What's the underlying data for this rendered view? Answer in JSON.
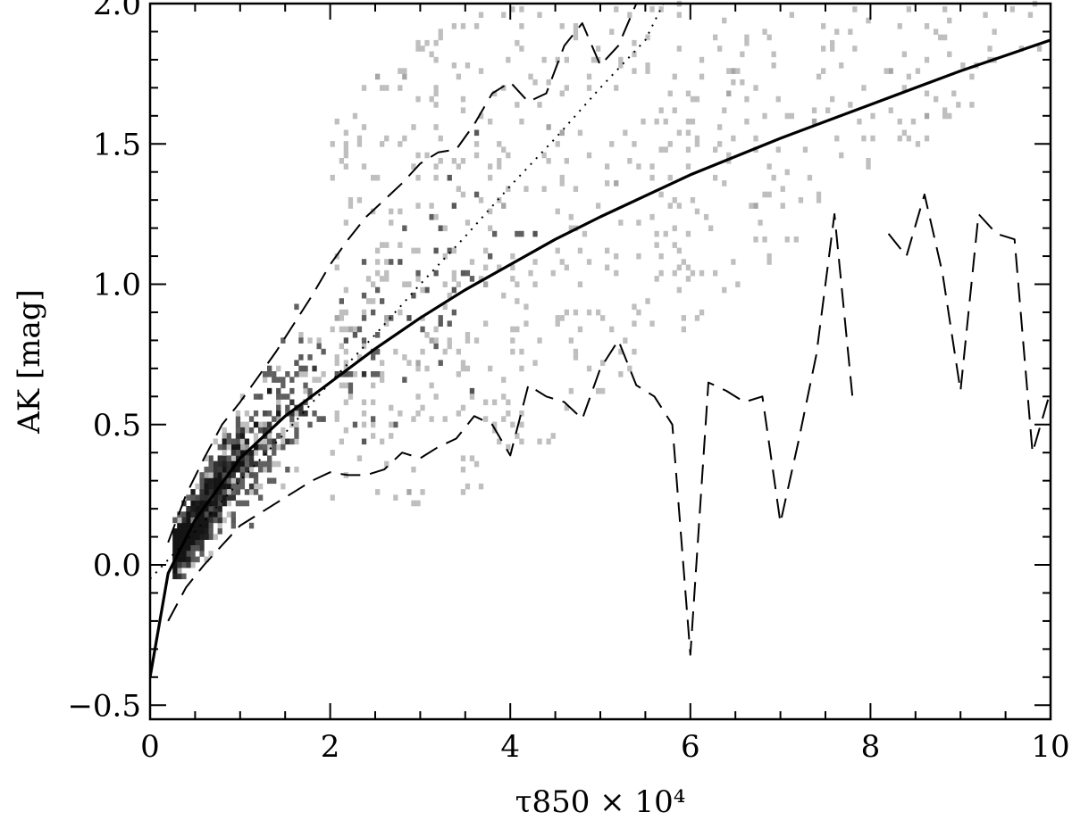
{
  "chart_data": {
    "type": "scatter",
    "title": "",
    "xlabel": "τ850 × 10⁴",
    "ylabel": "AK [mag]",
    "xlim": [
      0,
      10
    ],
    "ylim": [
      -0.55,
      2.0
    ],
    "grid": false,
    "x_ticks": [
      0,
      2,
      4,
      6,
      8,
      10
    ],
    "x_tick_labels": [
      "0",
      "2",
      "4",
      "6",
      "8",
      "10"
    ],
    "y_ticks": [
      -0.5,
      0.0,
      0.5,
      1.0,
      1.5,
      2.0
    ],
    "y_tick_labels": [
      "−0.5",
      "0.0",
      "0.5",
      "1.0",
      "1.5",
      "2.0"
    ],
    "density_ridge": [
      [
        0.3,
        0.05
      ],
      [
        0.5,
        0.15
      ],
      [
        0.8,
        0.3
      ],
      [
        1.2,
        0.45
      ],
      [
        1.6,
        0.6
      ],
      [
        2.0,
        0.72
      ],
      [
        2.5,
        0.85
      ],
      [
        3.0,
        1.0
      ],
      [
        3.5,
        1.1
      ],
      [
        4.0,
        1.2
      ],
      [
        4.5,
        1.35
      ],
      [
        5.0,
        1.5
      ]
    ],
    "series": [
      {
        "style": "solid",
        "x": [
          0.0,
          0.2,
          0.5,
          1.0,
          1.5,
          2.0,
          2.5,
          3.0,
          3.5,
          4.0,
          4.5,
          5.0,
          6.0,
          7.0,
          8.0,
          9.0,
          10.0
        ],
        "y": [
          -0.4,
          -0.03,
          0.16,
          0.38,
          0.53,
          0.65,
          0.77,
          0.88,
          0.98,
          1.07,
          1.16,
          1.24,
          1.39,
          1.52,
          1.64,
          1.76,
          1.87
        ]
      },
      {
        "style": "dotted",
        "x": [
          0.0,
          0.5,
          1.0,
          1.5,
          2.0,
          2.5,
          3.0,
          3.5,
          4.0,
          4.5,
          5.0,
          5.5,
          5.7
        ],
        "y": [
          -0.05,
          0.12,
          0.3,
          0.47,
          0.65,
          0.82,
          1.0,
          1.17,
          1.35,
          1.52,
          1.7,
          1.87,
          2.0
        ]
      },
      {
        "style": "dashed",
        "x": [
          0.2,
          0.4,
          0.6,
          0.8,
          1.0,
          1.2,
          1.4,
          1.6,
          1.8,
          2.0,
          2.2,
          2.4,
          2.6,
          2.8,
          3.0,
          3.2,
          3.4,
          3.6,
          3.8,
          4.0,
          4.2,
          4.4,
          4.6,
          4.8,
          5.0,
          5.2,
          5.4,
          5.6
        ],
        "y": [
          0.08,
          0.25,
          0.38,
          0.5,
          0.58,
          0.67,
          0.76,
          0.86,
          0.96,
          1.07,
          1.16,
          1.24,
          1.3,
          1.36,
          1.43,
          1.47,
          1.48,
          1.57,
          1.68,
          1.72,
          1.65,
          1.68,
          1.85,
          1.93,
          1.78,
          1.85,
          2.0,
          2.0
        ]
      },
      {
        "style": "dashed",
        "x": [
          0.2,
          0.4,
          0.6,
          0.8,
          1.0,
          1.4,
          1.8,
          2.0,
          2.2,
          2.4,
          2.6,
          2.8,
          3.0,
          3.2,
          3.4,
          3.6,
          3.8,
          4.0,
          4.2,
          4.4,
          4.6,
          4.8,
          5.0,
          5.2,
          5.4,
          5.6,
          5.8,
          6.0,
          6.2,
          6.4,
          6.6,
          6.8,
          7.0,
          7.2,
          7.4,
          7.6,
          7.8
        ],
        "y": [
          -0.2,
          -0.08,
          0.0,
          0.07,
          0.14,
          0.22,
          0.3,
          0.33,
          0.32,
          0.32,
          0.34,
          0.4,
          0.38,
          0.42,
          0.45,
          0.53,
          0.5,
          0.39,
          0.64,
          0.6,
          0.58,
          0.52,
          0.7,
          0.8,
          0.64,
          0.6,
          0.5,
          -0.32,
          0.65,
          0.62,
          0.58,
          0.6,
          0.15,
          0.44,
          0.75,
          1.25,
          0.6
        ]
      },
      {
        "style": "dashed",
        "x": [
          8.2,
          8.4,
          8.6,
          8.8,
          9.0,
          9.2,
          9.4,
          9.6,
          9.8,
          10.0
        ],
        "y": [
          1.18,
          1.1,
          1.32,
          1.04,
          0.62,
          1.25,
          1.18,
          1.16,
          0.4,
          0.62
        ]
      }
    ]
  }
}
